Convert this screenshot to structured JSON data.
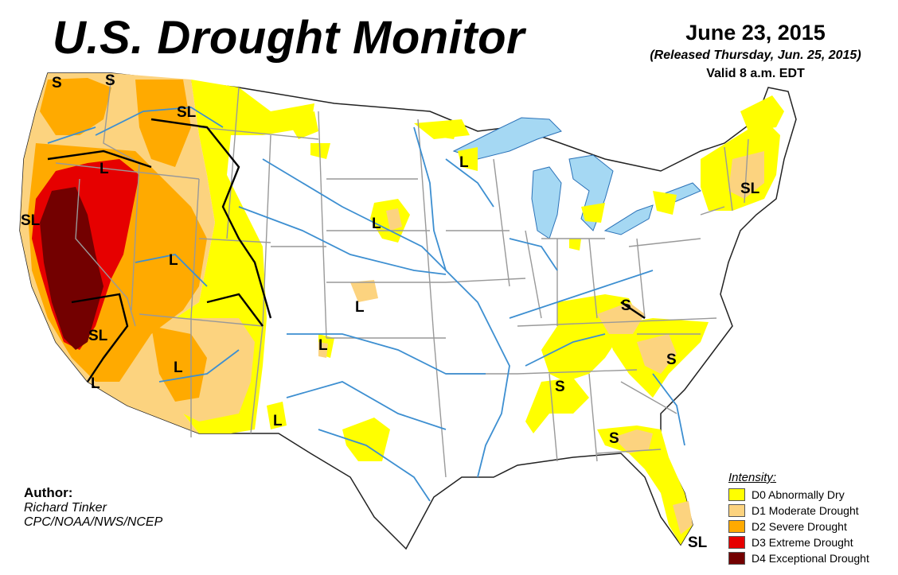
{
  "header": {
    "title": "U.S. Drought Monitor",
    "date": "June 23, 2015",
    "released": "(Released Thursday, Jun. 25, 2015)",
    "valid": "Valid 8 a.m. EDT"
  },
  "author": {
    "label": "Author:",
    "name": "Richard Tinker",
    "org": "CPC/NOAA/NWS/NCEP"
  },
  "legend": {
    "title": "Intensity:",
    "items": [
      {
        "label": "D0 Abnormally Dry",
        "color": "#ffff00"
      },
      {
        "label": "D1 Moderate Drought",
        "color": "#fcd37f"
      },
      {
        "label": "D2 Severe Drought",
        "color": "#ffaa00"
      },
      {
        "label": "D3 Extreme Drought",
        "color": "#e60000"
      },
      {
        "label": "D4 Exceptional Drought",
        "color": "#730000"
      }
    ]
  },
  "colors": {
    "water": "#a5d8f3",
    "rivers": "#3d8fd1",
    "boundaries": "#999999",
    "land": "#ffffff"
  },
  "impact_labels": [
    "S",
    "S",
    "SL",
    "L",
    "SL",
    "L",
    "SL",
    "L",
    "L",
    "L",
    "L",
    "L",
    "L",
    "L",
    "SL",
    "S",
    "S",
    "S",
    "S",
    "SL"
  ]
}
